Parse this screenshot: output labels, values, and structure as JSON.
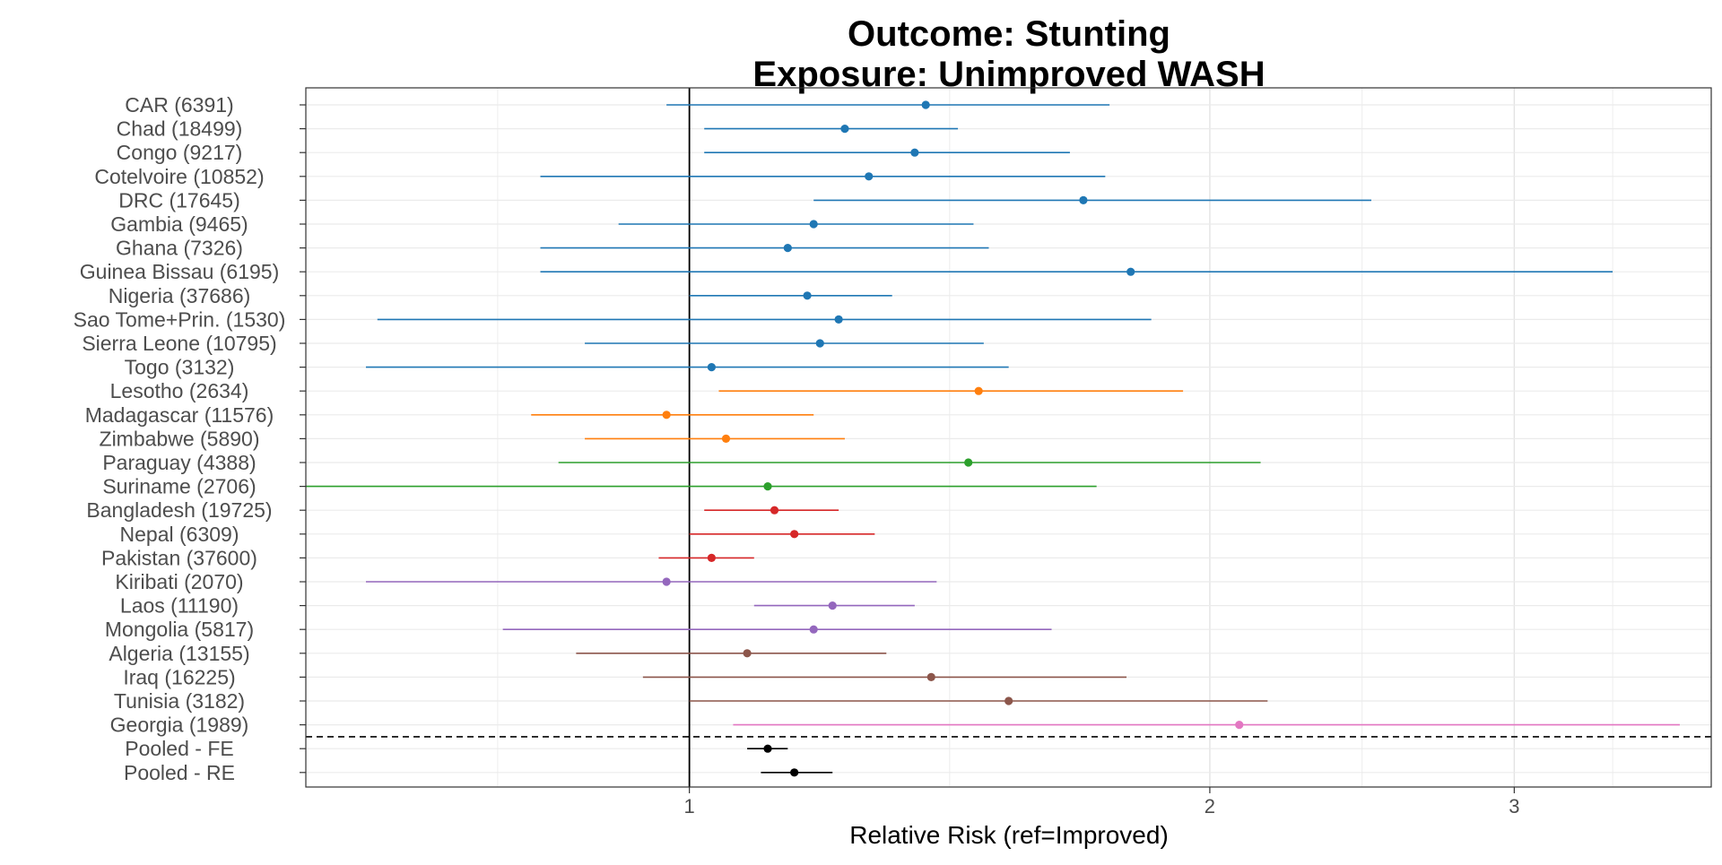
{
  "chart_data": {
    "type": "forest",
    "title": "Outcome: Stunting",
    "subtitle": "Exposure: Unimproved WASH",
    "xlabel": "Relative Risk (ref=Improved)",
    "ylabel": "",
    "x_scale": "log",
    "xlim": [
      0.6,
      3.9
    ],
    "x_ticks": [
      1,
      2,
      3
    ],
    "x_tick_labels": [
      "1",
      "2",
      "3"
    ],
    "grid": true,
    "reference_line": 1,
    "rows": [
      {
        "label": "CAR (6391)",
        "estimate": 1.37,
        "lower": 0.97,
        "upper": 1.75,
        "color": "#1f77b4"
      },
      {
        "label": "Chad (18499)",
        "estimate": 1.23,
        "lower": 1.02,
        "upper": 1.43,
        "color": "#1f77b4"
      },
      {
        "label": "Congo (9217)",
        "estimate": 1.35,
        "lower": 1.02,
        "upper": 1.66,
        "color": "#1f77b4"
      },
      {
        "label": "Cotelvoire (10852)",
        "estimate": 1.27,
        "lower": 0.82,
        "upper": 1.74,
        "color": "#1f77b4"
      },
      {
        "label": "DRC (17645)",
        "estimate": 1.69,
        "lower": 1.18,
        "upper": 2.48,
        "color": "#1f77b4"
      },
      {
        "label": "Gambia (9465)",
        "estimate": 1.18,
        "lower": 0.91,
        "upper": 1.46,
        "color": "#1f77b4"
      },
      {
        "label": "Ghana (7326)",
        "estimate": 1.14,
        "lower": 0.82,
        "upper": 1.49,
        "color": "#1f77b4"
      },
      {
        "label": "Guinea Bissau (6195)",
        "estimate": 1.8,
        "lower": 0.82,
        "upper": 3.42,
        "color": "#1f77b4"
      },
      {
        "label": "Nigeria (37686)",
        "estimate": 1.17,
        "lower": 1.0,
        "upper": 1.31,
        "color": "#1f77b4"
      },
      {
        "label": "Sao Tome+Prin. (1530)",
        "estimate": 1.22,
        "lower": 0.66,
        "upper": 1.85,
        "color": "#1f77b4"
      },
      {
        "label": "Sierra Leone (10795)",
        "estimate": 1.19,
        "lower": 0.87,
        "upper": 1.48,
        "color": "#1f77b4"
      },
      {
        "label": "Togo (3132)",
        "estimate": 1.03,
        "lower": 0.65,
        "upper": 1.53,
        "color": "#1f77b4"
      },
      {
        "label": "Lesotho (2634)",
        "estimate": 1.47,
        "lower": 1.04,
        "upper": 1.93,
        "color": "#ff7f0e"
      },
      {
        "label": "Madagascar (11576)",
        "estimate": 0.97,
        "lower": 0.81,
        "upper": 1.18,
        "color": "#ff7f0e"
      },
      {
        "label": "Zimbabwe (5890)",
        "estimate": 1.05,
        "lower": 0.87,
        "upper": 1.23,
        "color": "#ff7f0e"
      },
      {
        "label": "Paraguay (4388)",
        "estimate": 1.45,
        "lower": 0.84,
        "upper": 2.14,
        "color": "#2ca02c"
      },
      {
        "label": "Suriname (2706)",
        "estimate": 1.11,
        "lower": 0.6,
        "upper": 1.72,
        "color": "#2ca02c"
      },
      {
        "label": "Bangladesh (19725)",
        "estimate": 1.12,
        "lower": 1.02,
        "upper": 1.22,
        "color": "#d62728"
      },
      {
        "label": "Nepal (6309)",
        "estimate": 1.15,
        "lower": 1.0,
        "upper": 1.28,
        "color": "#d62728"
      },
      {
        "label": "Pakistan (37600)",
        "estimate": 1.03,
        "lower": 0.96,
        "upper": 1.09,
        "color": "#d62728"
      },
      {
        "label": "Kiribati (2070)",
        "estimate": 0.97,
        "lower": 0.65,
        "upper": 1.39,
        "color": "#9467bd"
      },
      {
        "label": "Laos (11190)",
        "estimate": 1.21,
        "lower": 1.09,
        "upper": 1.35,
        "color": "#9467bd"
      },
      {
        "label": "Mongolia (5817)",
        "estimate": 1.18,
        "lower": 0.78,
        "upper": 1.62,
        "color": "#9467bd"
      },
      {
        "label": "Algeria (13155)",
        "estimate": 1.08,
        "lower": 0.86,
        "upper": 1.3,
        "color": "#8c564b"
      },
      {
        "label": "Iraq (16225)",
        "estimate": 1.38,
        "lower": 0.94,
        "upper": 1.79,
        "color": "#8c564b"
      },
      {
        "label": "Tunisia (3182)",
        "estimate": 1.53,
        "lower": 1.0,
        "upper": 2.16,
        "color": "#8c564b"
      },
      {
        "label": "Georgia (1989)",
        "estimate": 2.08,
        "lower": 1.06,
        "upper": 3.74,
        "color": "#e377c2"
      },
      {
        "label": "Pooled - FE",
        "estimate": 1.11,
        "lower": 1.08,
        "upper": 1.14,
        "color": "#000000"
      },
      {
        "label": "Pooled - RE",
        "estimate": 1.15,
        "lower": 1.1,
        "upper": 1.21,
        "color": "#000000"
      }
    ]
  }
}
